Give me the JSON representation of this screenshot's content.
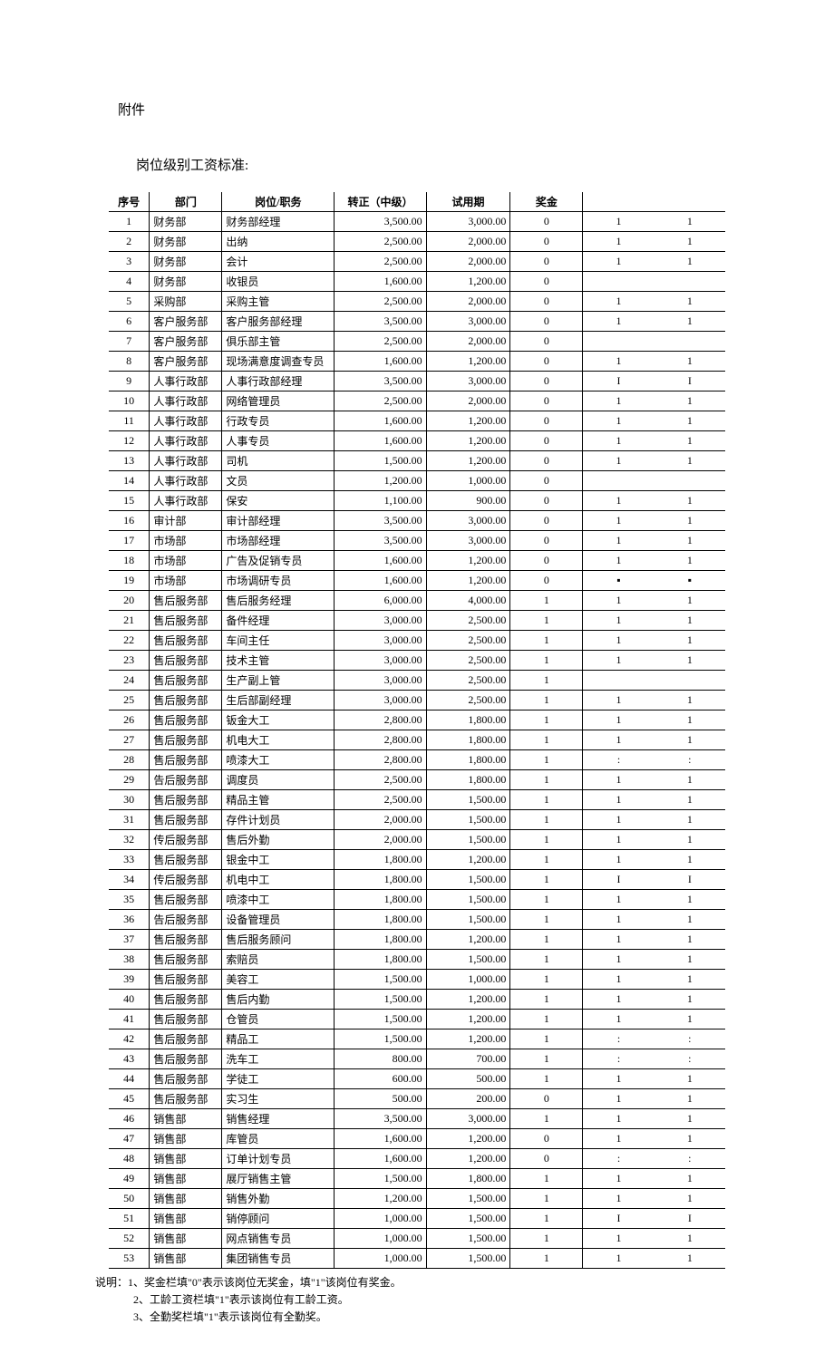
{
  "attachment_title": "附件",
  "subtitle": "岗位级别工资标准:",
  "columns": [
    "序号",
    "部门",
    "岗位/职务",
    "转正（中级）",
    "试用期",
    "奖金",
    "",
    ""
  ],
  "rows": [
    [
      "1",
      "财务部",
      "财务部经理",
      "3,500.00",
      "3,000.00",
      "0",
      "1",
      "1"
    ],
    [
      "2",
      "财务部",
      "出纳",
      "2,500.00",
      "2,000.00",
      "0",
      "1",
      "1"
    ],
    [
      "3",
      "财务部",
      "会计",
      "2,500.00",
      "2,000.00",
      "0",
      "1",
      "1"
    ],
    [
      "4",
      "财务部",
      "收银员",
      "1,600.00",
      "1,200.00",
      "0",
      "",
      ""
    ],
    [
      "5",
      "采购部",
      "采购主管",
      "2,500.00",
      "2,000.00",
      "0",
      "1",
      "1"
    ],
    [
      "6",
      "客户服务部",
      "客户服务部经理",
      "3,500.00",
      "3,000.00",
      "0",
      "1",
      "1"
    ],
    [
      "7",
      "客户服务部",
      "俱乐部主管",
      "2,500.00",
      "2,000.00",
      "0",
      "",
      ""
    ],
    [
      "8",
      "客户服务部",
      "现场满意度调查专员",
      "1,600.00",
      "1,200.00",
      "0",
      "1",
      "1"
    ],
    [
      "9",
      "人事行政部",
      "人事行政部经理",
      "3,500.00",
      "3,000.00",
      "0",
      "I",
      "I"
    ],
    [
      "10",
      "人事行政部",
      "网络管理员",
      "2,500.00",
      "2,000.00",
      "0",
      "1",
      "1"
    ],
    [
      "11",
      "人事行政部",
      "行政专员",
      "1,600.00",
      "1,200.00",
      "0",
      "1",
      "1"
    ],
    [
      "12",
      "人事行政部",
      "人事专员",
      "1,600.00",
      "1,200.00",
      "0",
      "1",
      "1"
    ],
    [
      "13",
      "人事行政部",
      "司机",
      "1,500.00",
      "1,200.00",
      "0",
      "1",
      "1"
    ],
    [
      "14",
      "人事行政部",
      "文员",
      "1,200.00",
      "1,000.00",
      "0",
      "",
      ""
    ],
    [
      "15",
      "人事行政部",
      "保安",
      "1,100.00",
      "900.00",
      "0",
      "1",
      "1"
    ],
    [
      "16",
      "审计部",
      "审计部经理",
      "3,500.00",
      "3,000.00",
      "0",
      "1",
      "1"
    ],
    [
      "17",
      "市场部",
      "市场部经理",
      "3,500.00",
      "3,000.00",
      "0",
      "1",
      "1"
    ],
    [
      "18",
      "市场部",
      "广告及促销专员",
      "1,600.00",
      "1,200.00",
      "0",
      "1",
      "1"
    ],
    [
      "19",
      "市场部",
      "市场调研专员",
      "1,600.00",
      "1,200.00",
      "0",
      "▪",
      "▪"
    ],
    [
      "20",
      "售后服务部",
      "售后服务经理",
      "6,000.00",
      "4,000.00",
      "1",
      "1",
      "1"
    ],
    [
      "21",
      "售后服务部",
      "备件经理",
      "3,000.00",
      "2,500.00",
      "1",
      "1",
      "1"
    ],
    [
      "22",
      "售后服务部",
      "车间主任",
      "3,000.00",
      "2,500.00",
      "1",
      "1",
      "1"
    ],
    [
      "23",
      "售后服务部",
      "技术主管",
      "3,000.00",
      "2,500.00",
      "1",
      "1",
      "1"
    ],
    [
      "24",
      "售后服务部",
      "生产副上管",
      "3,000.00",
      "2,500.00",
      "1",
      "",
      ""
    ],
    [
      "25",
      "售后服务部",
      "生后部副经理",
      "3,000.00",
      "2,500.00",
      "1",
      "1",
      "1"
    ],
    [
      "26",
      "售后服务部",
      "钣金大工",
      "2,800.00",
      "1,800.00",
      "1",
      "1",
      "1"
    ],
    [
      "27",
      "售后服务部",
      "机电大工",
      "2,800.00",
      "1,800.00",
      "1",
      "1",
      "1"
    ],
    [
      "28",
      "售后服务部",
      "喷漆大工",
      "2,800.00",
      "1,800.00",
      "1",
      ":",
      ":"
    ],
    [
      "29",
      "告后服务部",
      "调度员",
      "2,500.00",
      "1,800.00",
      "1",
      "1",
      "1"
    ],
    [
      "30",
      "售后服务部",
      "精品主管",
      "2,500.00",
      "1,500.00",
      "1",
      "1",
      "1"
    ],
    [
      "31",
      "售后服务部",
      "存件计划员",
      "2,000.00",
      "1,500.00",
      "1",
      "1",
      "1"
    ],
    [
      "32",
      "传后服务部",
      "售后外勤",
      "2,000.00",
      "1,500.00",
      "1",
      "1",
      "1"
    ],
    [
      "33",
      "售后服务部",
      "银金中工",
      "1,800.00",
      "1,200.00",
      "1",
      "1",
      "1"
    ],
    [
      "34",
      "传后服务部",
      "机电中工",
      "1,800.00",
      "1,500.00",
      "1",
      "I",
      "I"
    ],
    [
      "35",
      "售后服务部",
      "喷漆中工",
      "1,800.00",
      "1,500.00",
      "1",
      "1",
      "1"
    ],
    [
      "36",
      "告后服务部",
      "设备管理员",
      "1,800.00",
      "1,500.00",
      "1",
      "1",
      "1"
    ],
    [
      "37",
      "售后服务部",
      "售后服务顾问",
      "1,800.00",
      "1,200.00",
      "1",
      "1",
      "1"
    ],
    [
      "38",
      "售后服务部",
      "索赔员",
      "1,800.00",
      "1,500.00",
      "1",
      "1",
      "1"
    ],
    [
      "39",
      "售后服务部",
      "美容工",
      "1,500.00",
      "1,000.00",
      "1",
      "1",
      "1"
    ],
    [
      "40",
      "售后服务部",
      "售后内勤",
      "1,500.00",
      "1,200.00",
      "1",
      "1",
      "1"
    ],
    [
      "41",
      "售后服务部",
      "仓管员",
      "1,500.00",
      "1,200.00",
      "1",
      "1",
      "1"
    ],
    [
      "42",
      "售后服务部",
      "精品工",
      "1,500.00",
      "1,200.00",
      "1",
      ":",
      ":"
    ],
    [
      "43",
      "售后服务部",
      "洗车工",
      "800.00",
      "700.00",
      "1",
      ":",
      ":"
    ],
    [
      "44",
      "售后服务部",
      "学徒工",
      "600.00",
      "500.00",
      "1",
      "1",
      "1"
    ],
    [
      "45",
      "售后服务部",
      "实习生",
      "500.00",
      "200.00",
      "0",
      "1",
      "1"
    ],
    [
      "46",
      "销售部",
      "销售经理",
      "3,500.00",
      "3,000.00",
      "1",
      "1",
      "1"
    ],
    [
      "47",
      "销售部",
      "库管员",
      "1,600.00",
      "1,200.00",
      "0",
      "1",
      "1"
    ],
    [
      "48",
      "销售部",
      "订单计划专员",
      "1,600.00",
      "1,200.00",
      "0",
      ":",
      ":"
    ],
    [
      "49",
      "销售部",
      "展厅销售主管",
      "1,500.00",
      "1,800.00",
      "1",
      "1",
      "1"
    ],
    [
      "50",
      "销售部",
      "销售外勤",
      "1,200.00",
      "1,500.00",
      "1",
      "1",
      "1"
    ],
    [
      "51",
      "销售部",
      "销停顾问",
      "1,000.00",
      "1,500.00",
      "1",
      "I",
      "I"
    ],
    [
      "52",
      "销售部",
      "网点销售专员",
      "1,000.00",
      "1,500.00",
      "1",
      "1",
      "1"
    ],
    [
      "53",
      "销售部",
      "集团销售专员",
      "1,000.00",
      "1,500.00",
      "1",
      "1",
      "1"
    ]
  ],
  "notes_prefix": "说明：",
  "notes": [
    "1、奖金栏填\"0\"表示该岗位无奖金，填\"1\"该岗位有奖金。",
    "2、工龄工资栏填\"1\"表示该岗位有工龄工资。",
    "3、全勤奖栏填\"1\"表示该岗位有全勤奖。"
  ]
}
